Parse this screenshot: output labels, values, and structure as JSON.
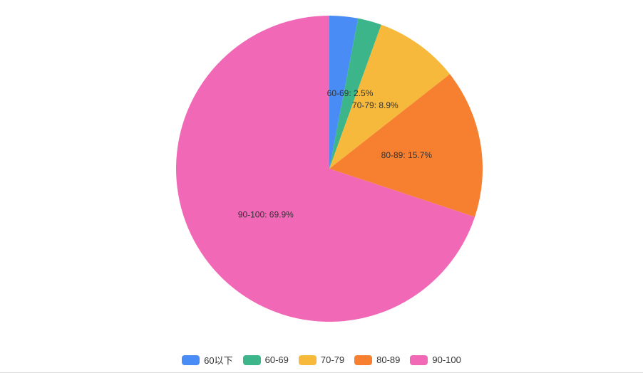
{
  "chart_data": {
    "type": "pie",
    "categories": [
      "60以下",
      "60-69",
      "70-79",
      "80-89",
      "90-100"
    ],
    "values": [
      3.0,
      2.5,
      8.9,
      15.7,
      69.9
    ],
    "unit": "%",
    "labels": [
      "",
      "60-69: 2.5%",
      "70-79: 8.9%",
      "80-89: 15.7%",
      "90-100: 69.9%"
    ],
    "colors": [
      "#4a8cf5",
      "#3cb58b",
      "#f6b93b",
      "#f77f30",
      "#f068b6"
    ],
    "legend_position": "bottom",
    "start_angle": "top, clockwise"
  }
}
